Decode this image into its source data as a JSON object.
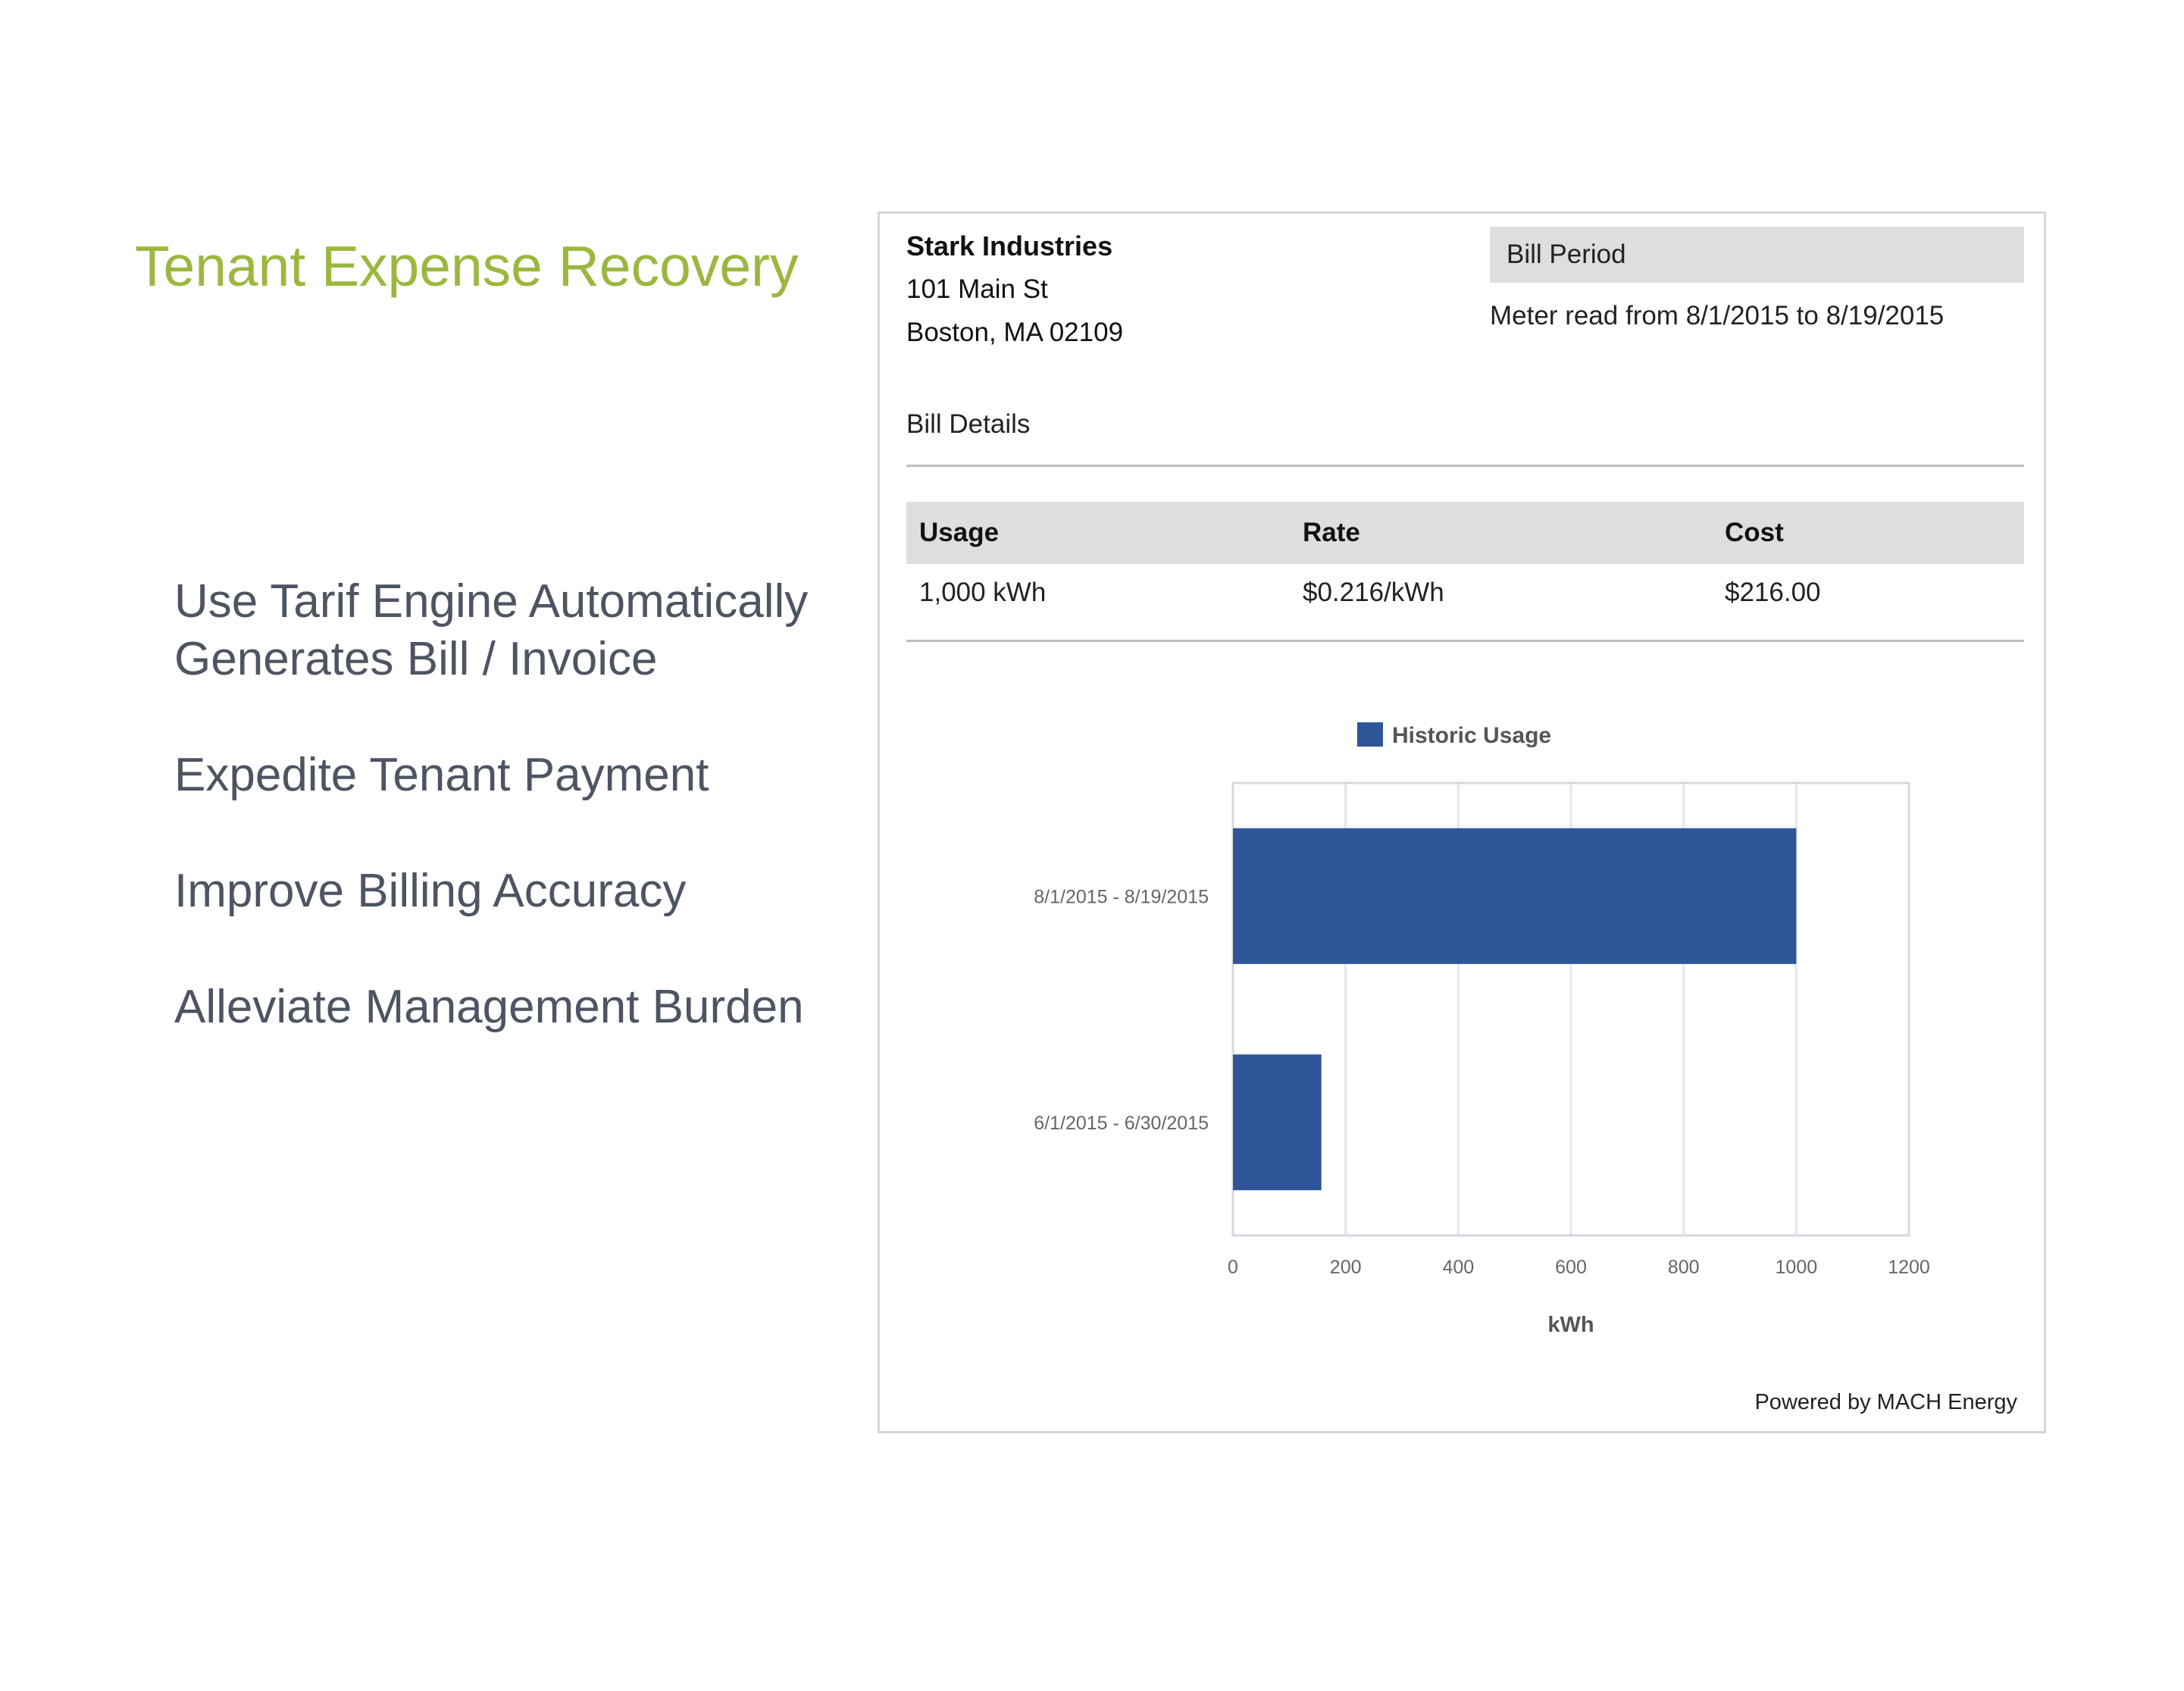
{
  "headline": "Tenant Expense Recovery",
  "bullets": [
    "Use Tarif Engine Automatically",
    "Generates Bill / Invoice",
    "Expedite Tenant Payment",
    "Improve Billing Accuracy",
    "Alleviate Management Burden"
  ],
  "bill": {
    "company": "Stark Industries",
    "address_line1": "101 Main St",
    "address_line2": "Boston, MA 02109",
    "period_header": "Bill Period",
    "meter_read": "Meter read from 8/1/2015 to 8/19/2015",
    "details_label": "Bill Details",
    "table": {
      "headers": [
        "Usage",
        "Rate",
        "Cost"
      ],
      "row": [
        "1,000 kWh",
        "$0.216/kWh",
        "$216.00"
      ]
    },
    "powered_by": "Powered by MACH Energy"
  },
  "colors": {
    "headline": "#9cb73f",
    "bullet_text": "#4d5462",
    "bar": "#2e5597",
    "header_bg": "#dedede"
  },
  "chart_data": {
    "type": "bar",
    "orientation": "horizontal",
    "legend": [
      "Historic Usage"
    ],
    "legend_placement": "top",
    "categories": [
      "8/1/2015 - 8/19/2015",
      "6/1/2015 - 6/30/2015"
    ],
    "series": [
      {
        "name": "Historic Usage",
        "values": [
          1000,
          157
        ]
      }
    ],
    "xlabel": "kWh",
    "xlim": [
      0,
      1200
    ],
    "xticks": [
      "0",
      "200",
      "400",
      "600",
      "800",
      "1000",
      "1200"
    ],
    "grid": true
  }
}
